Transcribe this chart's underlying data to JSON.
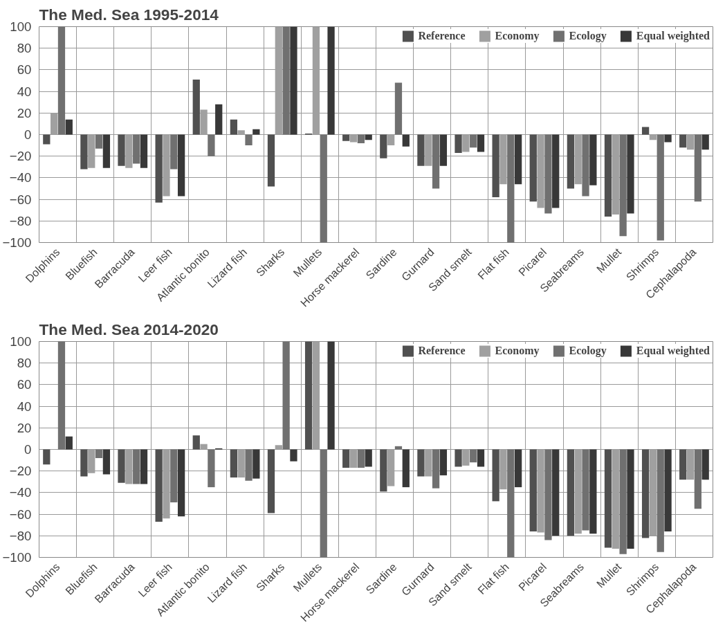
{
  "chart_data": [
    {
      "type": "bar",
      "title": "The Med. Sea 1995-2014",
      "categories": [
        "Dolphins",
        "Bluefish",
        "Barracuda",
        "Leer fish",
        "Atlantic bonito",
        "Lizard fish",
        "Sharks",
        "Mullets",
        "Horse mackerel",
        "Sardine",
        "Gurnard",
        "Sand smelt",
        "Flat fish",
        "Picarel",
        "Seabreams",
        "Mullet",
        "Shrimps",
        "Cephalapoda"
      ],
      "series": [
        {
          "name": "Reference",
          "color": "#505050",
          "values": [
            -9,
            -32,
            -29,
            -63,
            51,
            14,
            -48,
            1,
            -6,
            -22,
            -29,
            -17,
            -58,
            -62,
            -50,
            -76,
            7,
            -12
          ]
        },
        {
          "name": "Economy",
          "color": "#a0a0a0",
          "values": [
            20,
            -31,
            -31,
            -57,
            23,
            4,
            100,
            100,
            -7,
            -10,
            -29,
            -16,
            -46,
            -68,
            -46,
            -74,
            -5,
            -14
          ]
        },
        {
          "name": "Ecology",
          "color": "#707070",
          "values": [
            100,
            -13,
            -27,
            -32,
            -20,
            -10,
            100,
            -100,
            -8,
            48,
            -50,
            -12,
            -100,
            -73,
            -57,
            -94,
            -98,
            -62
          ]
        },
        {
          "name": "Equal weighted",
          "color": "#383838",
          "values": [
            14,
            -31,
            -31,
            -57,
            28,
            5,
            100,
            100,
            -5,
            -11,
            -29,
            -16,
            -46,
            -68,
            -47,
            -73,
            -7,
            -14
          ]
        }
      ],
      "ylim": [
        -100,
        100
      ],
      "yticks": [
        -100,
        -80,
        -60,
        -40,
        -20,
        0,
        20,
        40,
        60,
        80,
        100
      ],
      "grid": true,
      "legend": "top right"
    },
    {
      "type": "bar",
      "title": "The Med. Sea 2014-2020",
      "categories": [
        "Dolphins",
        "Bluefish",
        "Barracuda",
        "Leer fish",
        "Atlantic bonito",
        "Lizard fish",
        "Sharks",
        "Mullets",
        "Horse mackerel",
        "Sardine",
        "Gurnard",
        "Sand smelt",
        "Flat fish",
        "Picarel",
        "Seabreams",
        "Mullet",
        "Shrimps",
        "Cephalapoda"
      ],
      "series": [
        {
          "name": "Reference",
          "color": "#505050",
          "values": [
            -14,
            -25,
            -31,
            -67,
            13,
            -26,
            -59,
            100,
            -17,
            -39,
            -25,
            -16,
            -48,
            -76,
            -80,
            -91,
            -82,
            -28
          ]
        },
        {
          "name": "Economy",
          "color": "#a0a0a0",
          "values": [
            0,
            -22,
            -32,
            -64,
            5,
            -26,
            4,
            100,
            -17,
            -34,
            -25,
            -15,
            -37,
            -77,
            -78,
            -92,
            -80,
            -28
          ]
        },
        {
          "name": "Ecology",
          "color": "#707070",
          "values": [
            100,
            -8,
            -32,
            -49,
            -35,
            -29,
            100,
            -100,
            -17,
            3,
            -36,
            -12,
            -100,
            -84,
            -75,
            -97,
            -95,
            -55
          ]
        },
        {
          "name": "Equal weighted",
          "color": "#383838",
          "values": [
            12,
            -23,
            -32,
            -62,
            1,
            -27,
            -11,
            100,
            -16,
            -35,
            -24,
            -16,
            -35,
            -80,
            -78,
            -92,
            -76,
            -28
          ]
        }
      ],
      "ylim": [
        -100,
        100
      ],
      "yticks": [
        -100,
        -80,
        -60,
        -40,
        -20,
        0,
        20,
        40,
        60,
        80,
        100
      ],
      "grid": true,
      "legend": "top right"
    }
  ]
}
